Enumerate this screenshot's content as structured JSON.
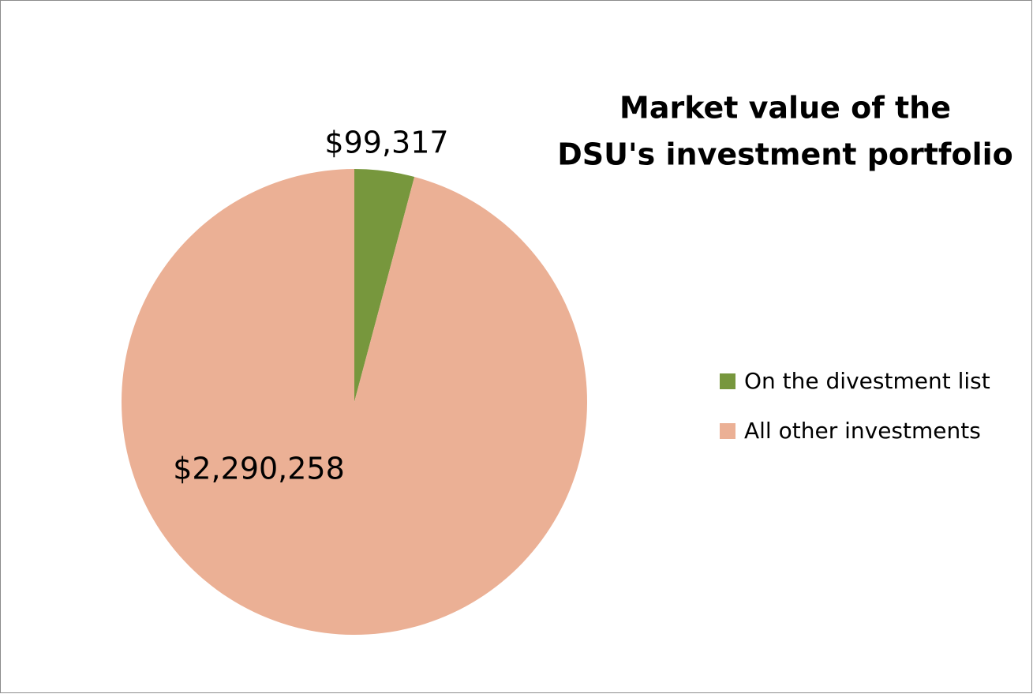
{
  "chart_data": {
    "type": "pie",
    "title": [
      "Market value of the",
      "DSU's investment portfolio"
    ],
    "categories": [
      "On the divestment list",
      "All other investments"
    ],
    "values": [
      99317,
      2290258
    ],
    "value_labels": [
      "$99,317",
      "$2,290,258"
    ],
    "colors": [
      "#77973d",
      "#ebb095"
    ],
    "legend": "right"
  }
}
